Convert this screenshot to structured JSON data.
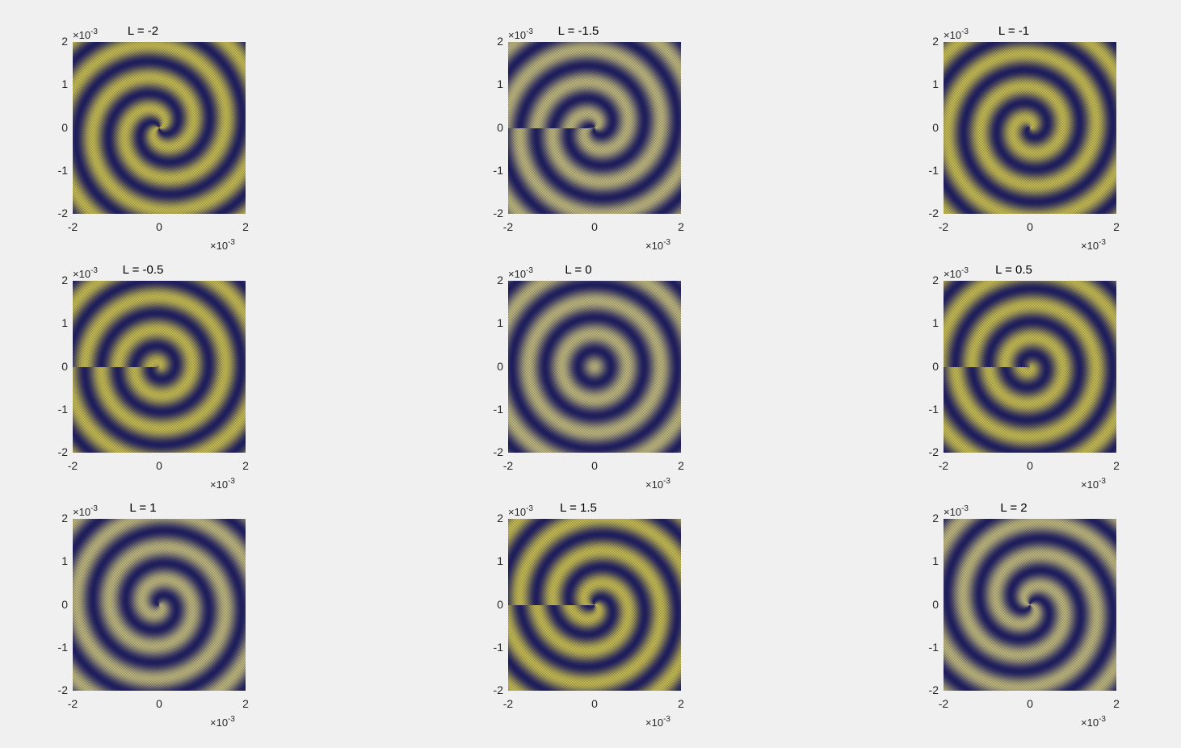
{
  "chart_data": [
    {
      "type": "heatmap",
      "title": "L = -2",
      "L": -2,
      "xlim": [
        -2,
        2
      ],
      "ylim": [
        -2,
        2
      ],
      "xticks": [
        "-2",
        "0",
        "2"
      ],
      "yticks": [
        "2",
        "1",
        "0",
        "-1",
        "-2"
      ],
      "axis_multiplier": "×10",
      "axis_exponent": "-3"
    },
    {
      "type": "heatmap",
      "title": "L = -1.5",
      "L": -1.5,
      "xlim": [
        -2,
        2
      ],
      "ylim": [
        -2,
        2
      ],
      "xticks": [
        "-2",
        "0",
        "2"
      ],
      "yticks": [
        "2",
        "1",
        "0",
        "-1",
        "-2"
      ],
      "axis_multiplier": "×10",
      "axis_exponent": "-3"
    },
    {
      "type": "heatmap",
      "title": "L = -1",
      "L": -1,
      "xlim": [
        -2,
        2
      ],
      "ylim": [
        -2,
        2
      ],
      "xticks": [
        "-2",
        "0",
        "2"
      ],
      "yticks": [
        "2",
        "1",
        "0",
        "-1",
        "-2"
      ],
      "axis_multiplier": "×10",
      "axis_exponent": "-3"
    },
    {
      "type": "heatmap",
      "title": "L = -0.5",
      "L": -0.5,
      "xlim": [
        -2,
        2
      ],
      "ylim": [
        -2,
        2
      ],
      "xticks": [
        "-2",
        "0",
        "2"
      ],
      "yticks": [
        "2",
        "1",
        "0",
        "-1",
        "-2"
      ],
      "axis_multiplier": "×10",
      "axis_exponent": "-3"
    },
    {
      "type": "heatmap",
      "title": "L = 0",
      "L": 0,
      "xlim": [
        -2,
        2
      ],
      "ylim": [
        -2,
        2
      ],
      "xticks": [
        "-2",
        "0",
        "2"
      ],
      "yticks": [
        "2",
        "1",
        "0",
        "-1",
        "-2"
      ],
      "axis_multiplier": "×10",
      "axis_exponent": "-3"
    },
    {
      "type": "heatmap",
      "title": "L = 0.5",
      "L": 0.5,
      "xlim": [
        -2,
        2
      ],
      "ylim": [
        -2,
        2
      ],
      "xticks": [
        "-2",
        "0",
        "2"
      ],
      "yticks": [
        "2",
        "1",
        "0",
        "-1",
        "-2"
      ],
      "axis_multiplier": "×10",
      "axis_exponent": "-3"
    },
    {
      "type": "heatmap",
      "title": "L = 1",
      "L": 1,
      "xlim": [
        -2,
        2
      ],
      "ylim": [
        -2,
        2
      ],
      "xticks": [
        "-2",
        "0",
        "2"
      ],
      "yticks": [
        "2",
        "1",
        "0",
        "-1",
        "-2"
      ],
      "axis_multiplier": "×10",
      "axis_exponent": "-3"
    },
    {
      "type": "heatmap",
      "title": "L = 1.5",
      "L": 1.5,
      "xlim": [
        -2,
        2
      ],
      "ylim": [
        -2,
        2
      ],
      "xticks": [
        "-2",
        "0",
        "2"
      ],
      "yticks": [
        "2",
        "1",
        "0",
        "-1",
        "-2"
      ],
      "axis_multiplier": "×10",
      "axis_exponent": "-3"
    },
    {
      "type": "heatmap",
      "title": "L = 2",
      "L": 2,
      "xlim": [
        -2,
        2
      ],
      "ylim": [
        -2,
        2
      ],
      "xticks": [
        "-2",
        "0",
        "2"
      ],
      "yticks": [
        "2",
        "1",
        "0",
        "-1",
        "-2"
      ],
      "axis_multiplier": "×10",
      "axis_exponent": "-3"
    }
  ],
  "colors": {
    "dark": "#1f1e5c",
    "light": "#c8bf62",
    "background": "#f0f0f0"
  }
}
